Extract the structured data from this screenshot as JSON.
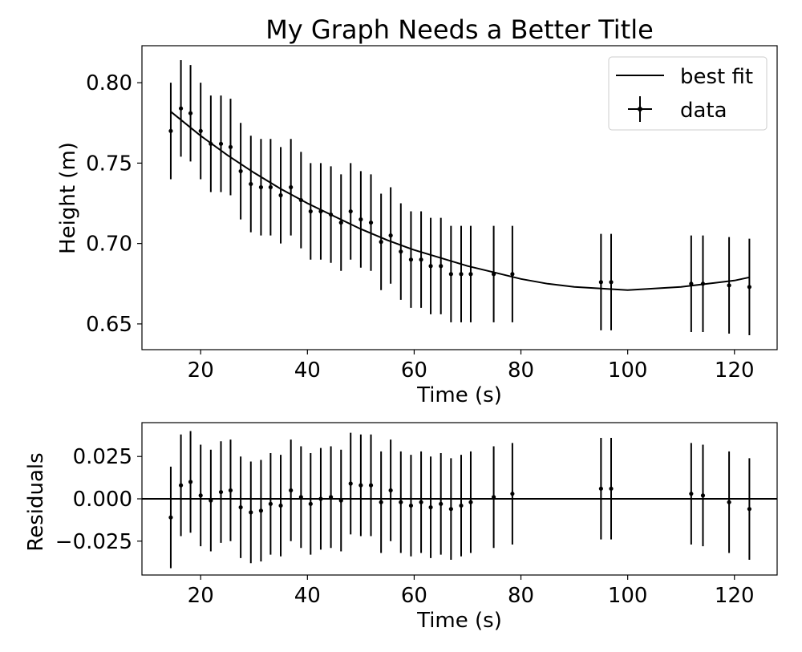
{
  "chart_data": [
    {
      "type": "scatter",
      "title": "My Graph Needs a Better Title",
      "xlabel": "Time (s)",
      "ylabel": "Height (m)",
      "xlim": [
        9,
        128
      ],
      "ylim": [
        0.634,
        0.823
      ],
      "xticks": [
        20,
        40,
        60,
        80,
        100,
        120
      ],
      "xtick_labels": [
        "20",
        "40",
        "60",
        "80",
        "100",
        "120"
      ],
      "yticks": [
        0.65,
        0.7,
        0.75,
        0.8
      ],
      "ytick_labels": [
        "0.65",
        "0.70",
        "0.75",
        "0.80"
      ],
      "grid": false,
      "legend": {
        "placement": "upper right",
        "entries": [
          "best fit",
          "data"
        ]
      },
      "series": [
        {
          "name": "data",
          "kind": "errorbar",
          "color": "#000000",
          "x": [
            14.4,
            16.3,
            18.1,
            20.0,
            21.9,
            23.8,
            25.6,
            27.5,
            29.4,
            31.3,
            33.1,
            35.0,
            36.9,
            38.8,
            40.6,
            42.5,
            44.4,
            46.3,
            48.1,
            50.0,
            51.9,
            53.8,
            55.6,
            57.5,
            59.4,
            61.3,
            63.1,
            65.0,
            66.9,
            68.8,
            70.6,
            74.9,
            78.4,
            95.0,
            96.9,
            111.9,
            114.1,
            119.0,
            122.8
          ],
          "y": [
            0.77,
            0.784,
            0.781,
            0.77,
            0.762,
            0.762,
            0.76,
            0.745,
            0.737,
            0.735,
            0.735,
            0.73,
            0.735,
            0.727,
            0.72,
            0.72,
            0.718,
            0.713,
            0.72,
            0.715,
            0.713,
            0.701,
            0.705,
            0.695,
            0.69,
            0.69,
            0.686,
            0.686,
            0.681,
            0.681,
            0.681,
            0.681,
            0.681,
            0.676,
            0.676,
            0.675,
            0.675,
            0.674,
            0.673
          ],
          "yerr": 0.03
        },
        {
          "name": "best fit",
          "kind": "line",
          "color": "#000000",
          "x": [
            14.4,
            20,
            25,
            30,
            35,
            40,
            45,
            50,
            55,
            60,
            65,
            70,
            75,
            80,
            85,
            90,
            95,
            100,
            105,
            110,
            115,
            120,
            122.8
          ],
          "y": [
            0.782,
            0.767,
            0.755,
            0.744,
            0.734,
            0.725,
            0.717,
            0.709,
            0.702,
            0.696,
            0.691,
            0.686,
            0.682,
            0.678,
            0.675,
            0.673,
            0.672,
            0.671,
            0.672,
            0.673,
            0.675,
            0.677,
            0.679
          ]
        }
      ]
    },
    {
      "type": "scatter",
      "title": "",
      "xlabel": "Time (s)",
      "ylabel": "Residuals",
      "xlim": [
        9,
        128
      ],
      "ylim": [
        -0.045,
        0.045
      ],
      "xticks": [
        20,
        40,
        60,
        80,
        100,
        120
      ],
      "xtick_labels": [
        "20",
        "40",
        "60",
        "80",
        "100",
        "120"
      ],
      "yticks": [
        -0.025,
        0.0,
        0.025
      ],
      "ytick_labels": [
        "−0.025",
        "0.000",
        "0.025"
      ],
      "grid": false,
      "zero_line": 0.0,
      "series": [
        {
          "kind": "errorbar",
          "color": "#000000",
          "x": [
            14.4,
            16.3,
            18.1,
            20.0,
            21.9,
            23.8,
            25.6,
            27.5,
            29.4,
            31.3,
            33.1,
            35.0,
            36.9,
            38.8,
            40.6,
            42.5,
            44.4,
            46.3,
            48.1,
            50.0,
            51.9,
            53.8,
            55.6,
            57.5,
            59.4,
            61.3,
            63.1,
            65.0,
            66.9,
            68.8,
            70.6,
            74.9,
            78.4,
            95.0,
            96.9,
            111.9,
            114.1,
            119.0,
            122.8
          ],
          "y": [
            -0.011,
            0.008,
            0.01,
            0.002,
            -0.001,
            0.004,
            0.005,
            -0.005,
            -0.008,
            -0.007,
            -0.003,
            -0.004,
            0.005,
            0.001,
            -0.003,
            0.0,
            0.001,
            -0.001,
            0.009,
            0.008,
            0.008,
            -0.002,
            0.005,
            -0.002,
            -0.004,
            -0.002,
            -0.005,
            -0.003,
            -0.006,
            -0.004,
            -0.002,
            0.001,
            0.003,
            0.006,
            0.006,
            0.003,
            0.002,
            -0.002,
            -0.006
          ],
          "yerr": 0.03
        }
      ]
    }
  ]
}
